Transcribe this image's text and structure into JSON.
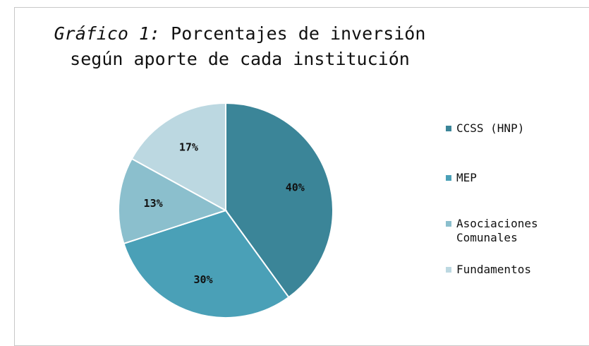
{
  "chart_data": {
    "type": "pie",
    "title_label": "Gráfico 1:",
    "title": "Porcentajes de inversión según aporte de cada institución",
    "categories": [
      "CCSS (HNP)",
      "MEP",
      "Asociaciones Comunales",
      "Fundamentos"
    ],
    "values": [
      40,
      30,
      13,
      17
    ],
    "value_labels": [
      "40%",
      "30%",
      "13%",
      "17%"
    ],
    "colors": [
      "#3b8598",
      "#4aa0b7",
      "#8bbfcd",
      "#bcd8e1"
    ],
    "legend": "right"
  }
}
